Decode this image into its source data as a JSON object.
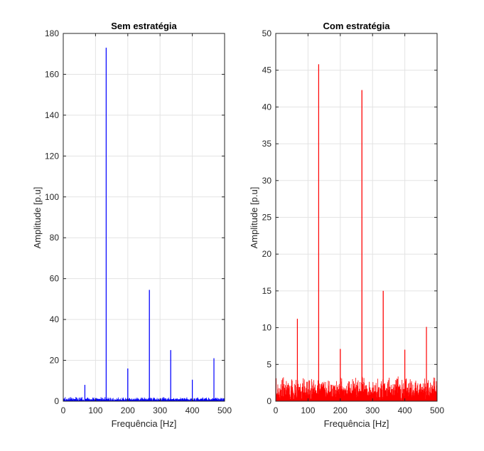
{
  "colors": {
    "background": "#ffffff",
    "axis": "#262626",
    "grid": "#e3e3e3"
  },
  "chart_data": [
    {
      "type": "line",
      "title": "Sem estratégia",
      "xlabel": "Frequência [Hz]",
      "ylabel": "Amplitude [p.u]",
      "xlim": [
        0,
        500
      ],
      "ylim": [
        0,
        180
      ],
      "xticks": [
        0,
        100,
        200,
        300,
        400,
        500
      ],
      "yticks": [
        0,
        20,
        40,
        60,
        80,
        100,
        120,
        140,
        160,
        180
      ],
      "grid": true,
      "color": "#0000ff",
      "noise_floor": 1.5,
      "peaks": [
        {
          "x": 67,
          "y": 8
        },
        {
          "x": 133,
          "y": 173
        },
        {
          "x": 200,
          "y": 16
        },
        {
          "x": 267,
          "y": 54.5
        },
        {
          "x": 333,
          "y": 25
        },
        {
          "x": 400,
          "y": 10.5
        },
        {
          "x": 467,
          "y": 21
        }
      ]
    },
    {
      "type": "line",
      "title": "Com estratégia",
      "xlabel": "Frequência [Hz]",
      "ylabel": "Amplitude [p.u]",
      "xlim": [
        0,
        500
      ],
      "ylim": [
        0,
        50
      ],
      "xticks": [
        0,
        100,
        200,
        300,
        400,
        500
      ],
      "yticks": [
        0,
        5,
        10,
        15,
        20,
        25,
        30,
        35,
        40,
        45,
        50
      ],
      "grid": true,
      "color": "#ff0000",
      "noise_floor": 2.5,
      "peaks": [
        {
          "x": 67,
          "y": 11.2
        },
        {
          "x": 133,
          "y": 45.8
        },
        {
          "x": 200,
          "y": 7.1
        },
        {
          "x": 267,
          "y": 42.3
        },
        {
          "x": 333,
          "y": 15
        },
        {
          "x": 400,
          "y": 7
        },
        {
          "x": 467,
          "y": 10.1
        }
      ]
    }
  ]
}
